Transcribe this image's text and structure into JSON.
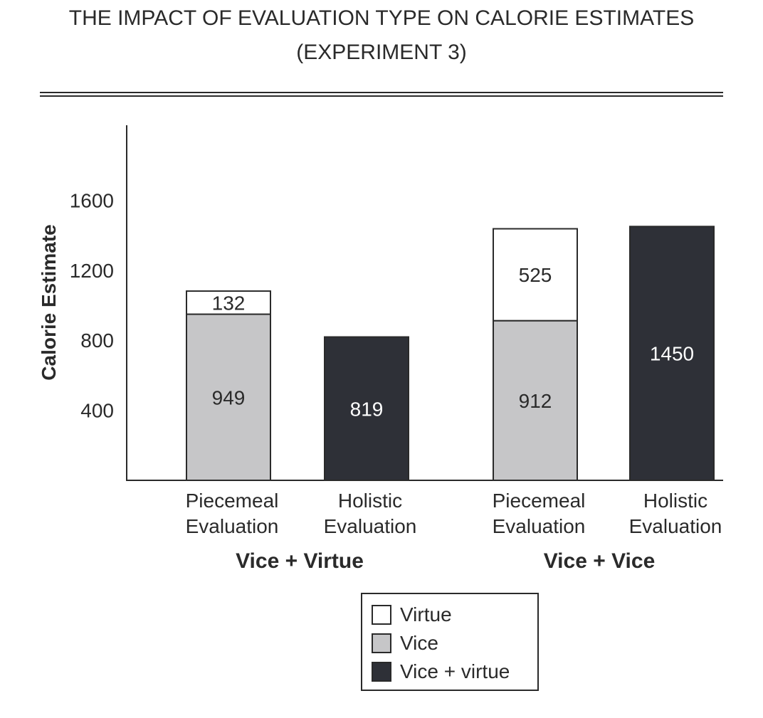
{
  "chart_data": {
    "type": "bar",
    "stacked": true,
    "title": [
      "THE IMPACT OF EVALUATION TYPE ON CALORIE ESTIMATES",
      "(EXPERIMENT 3)"
    ],
    "ylabel": "Calorie Estimate",
    "xlabel": "",
    "ylim": [
      0,
      2020
    ],
    "yticks": [
      400,
      800,
      1200,
      1600
    ],
    "grid": false,
    "legend_position": "bottom-center",
    "groups": [
      {
        "label": "Vice + Virtue",
        "bars": [
          {
            "label": [
              "Piecemeal",
              "Evaluation"
            ],
            "segments": [
              {
                "series": "Vice",
                "value": 949
              },
              {
                "series": "Virtue",
                "value": 132
              }
            ]
          },
          {
            "label": [
              "Holistic",
              "Evaluation"
            ],
            "segments": [
              {
                "series": "Vice + virtue",
                "value": 819
              }
            ]
          }
        ]
      },
      {
        "label": "Vice + Vice",
        "bars": [
          {
            "label": [
              "Piecemeal",
              "Evaluation"
            ],
            "segments": [
              {
                "series": "Vice",
                "value": 912
              },
              {
                "series": "Virtue",
                "value": 525
              }
            ]
          },
          {
            "label": [
              "Holistic",
              "Evaluation"
            ],
            "segments": [
              {
                "series": "Vice + virtue",
                "value": 1450
              }
            ]
          }
        ]
      }
    ],
    "series": [
      {
        "name": "Virtue",
        "color": "#ffffff",
        "text_color": "#2a2a2a"
      },
      {
        "name": "Vice",
        "color": "#c6c6c8",
        "text_color": "#2a2a2a"
      },
      {
        "name": "Vice + virtue",
        "color": "#2e3037",
        "text_color": "#ffffff"
      }
    ]
  }
}
